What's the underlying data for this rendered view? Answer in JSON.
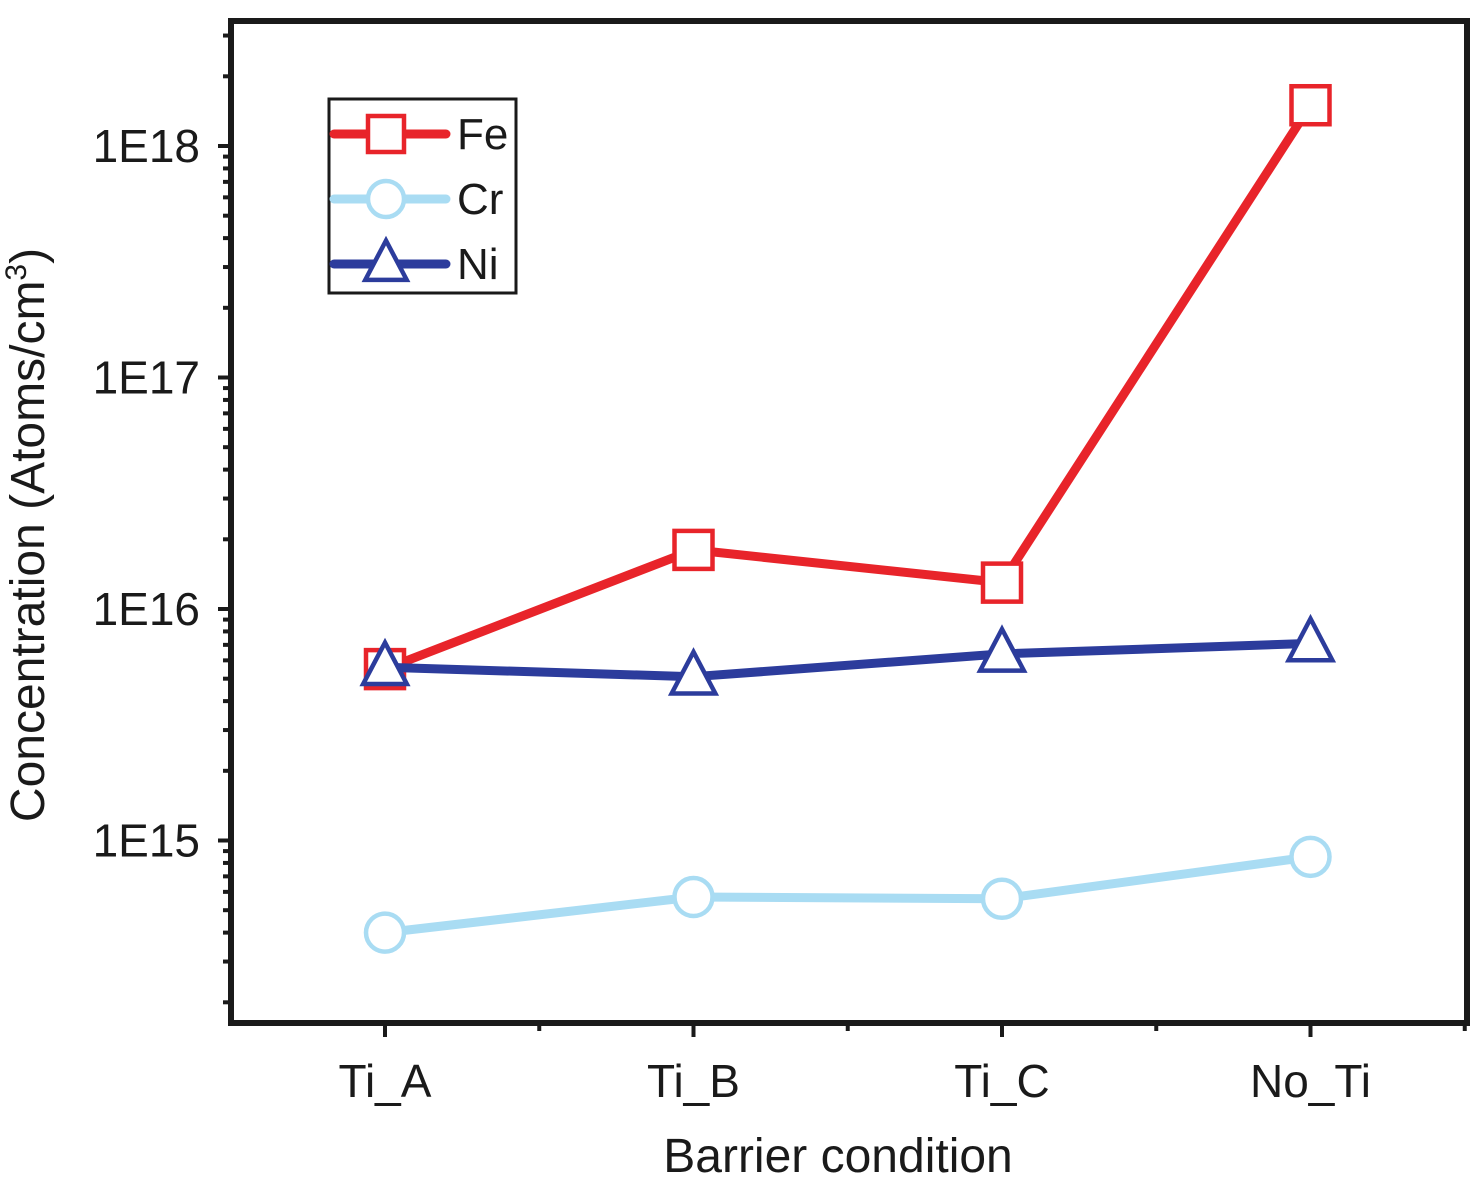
{
  "chart_data": {
    "type": "line",
    "xlabel": "Barrier condition",
    "ylabel": "Concentration (Atoms/cm³)",
    "ylabel_base": "Concentration (Atoms/cm",
    "ylabel_sup": "3",
    "ylabel_close": ")",
    "yscale": "log",
    "ylim": [
      200000000000000.0,
      3.3e+18
    ],
    "categories": [
      "Ti_A",
      "Ti_B",
      "Ti_C",
      "No_Ti"
    ],
    "y_ticks": [
      {
        "value": 1000000000000000.0,
        "label": "1E15"
      },
      {
        "value": 1e+16,
        "label": "1E16"
      },
      {
        "value": 1e+17,
        "label": "1E17"
      },
      {
        "value": 1e+18,
        "label": "1E18"
      }
    ],
    "grid": false,
    "legend_position": "top-left",
    "series": [
      {
        "name": "Fe",
        "marker": "square",
        "color": "#e8242a",
        "values": [
          5500000000000000.0,
          1.8e+16,
          1.3e+16,
          1.5e+18
        ]
      },
      {
        "name": "Cr",
        "marker": "circle",
        "color": "#a9dcf3",
        "values": [
          400000000000000.0,
          570000000000000.0,
          560000000000000.0,
          850000000000000.0
        ]
      },
      {
        "name": "Ni",
        "marker": "triangle",
        "color": "#2c3c9c",
        "values": [
          5600000000000000.0,
          5100000000000000.0,
          6400000000000000.0,
          7100000000000000.0
        ]
      }
    ]
  }
}
